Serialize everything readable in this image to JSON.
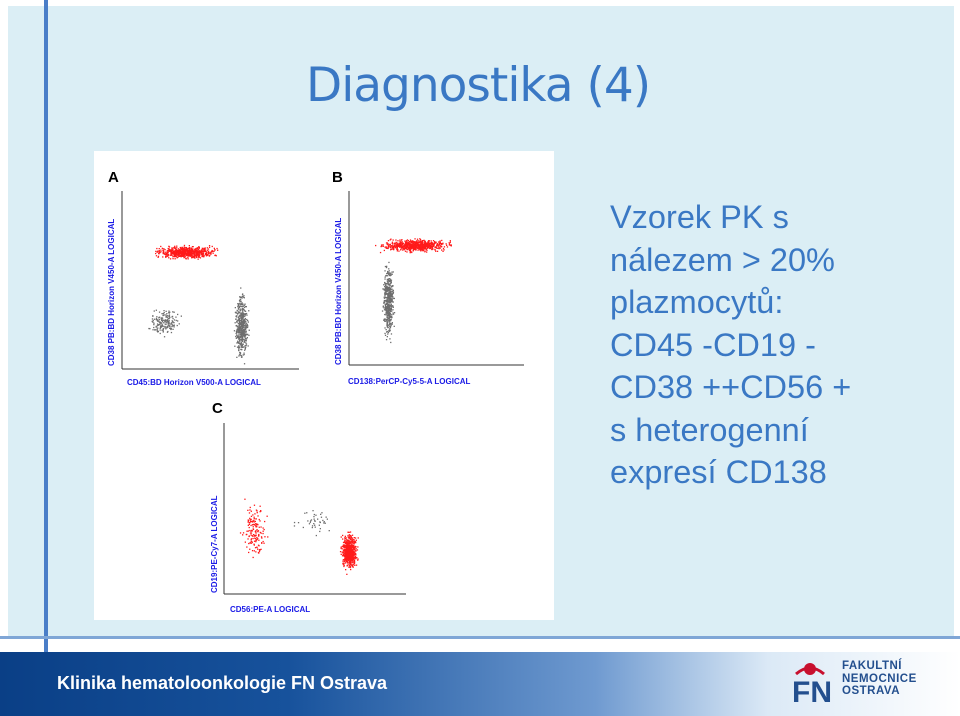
{
  "slide": {
    "title": "Diagnostika (4)",
    "body_lines": [
      "Vzorek PK s",
      "nálezem > 20%",
      "plazmocytů:",
      "CD45 -CD19 -",
      "CD38 ++CD56 +",
      "s heterogenní",
      "expresí CD138"
    ],
    "footer": "Klinika hematoloonkologie FN Ostrava",
    "logo": {
      "mark": "FN",
      "lines": [
        "FAKULTNÍ",
        "NEMOCNICE",
        "OSTRAVA"
      ]
    }
  },
  "figure": {
    "panels": [
      {
        "letter": "A",
        "ylabel": "CD38 PB:BD Horizon V450-A LOGICAL",
        "xlabel": "CD45:BD Horizon V500-A LOGICAL"
      },
      {
        "letter": "B",
        "ylabel": "CD38 PB:BD Horizon V450-A LOGICAL",
        "xlabel": "CD138:PerCP-Cy5-5-A LOGICAL"
      },
      {
        "letter": "C",
        "ylabel": "CD19:PE-Cy7-A LOGICAL",
        "xlabel": "CD56:PE-A LOGICAL"
      }
    ],
    "colors": {
      "plasma": "#ff1a1a",
      "other": "#6e6e6e",
      "axis_text": "#1a1ae6"
    }
  }
}
